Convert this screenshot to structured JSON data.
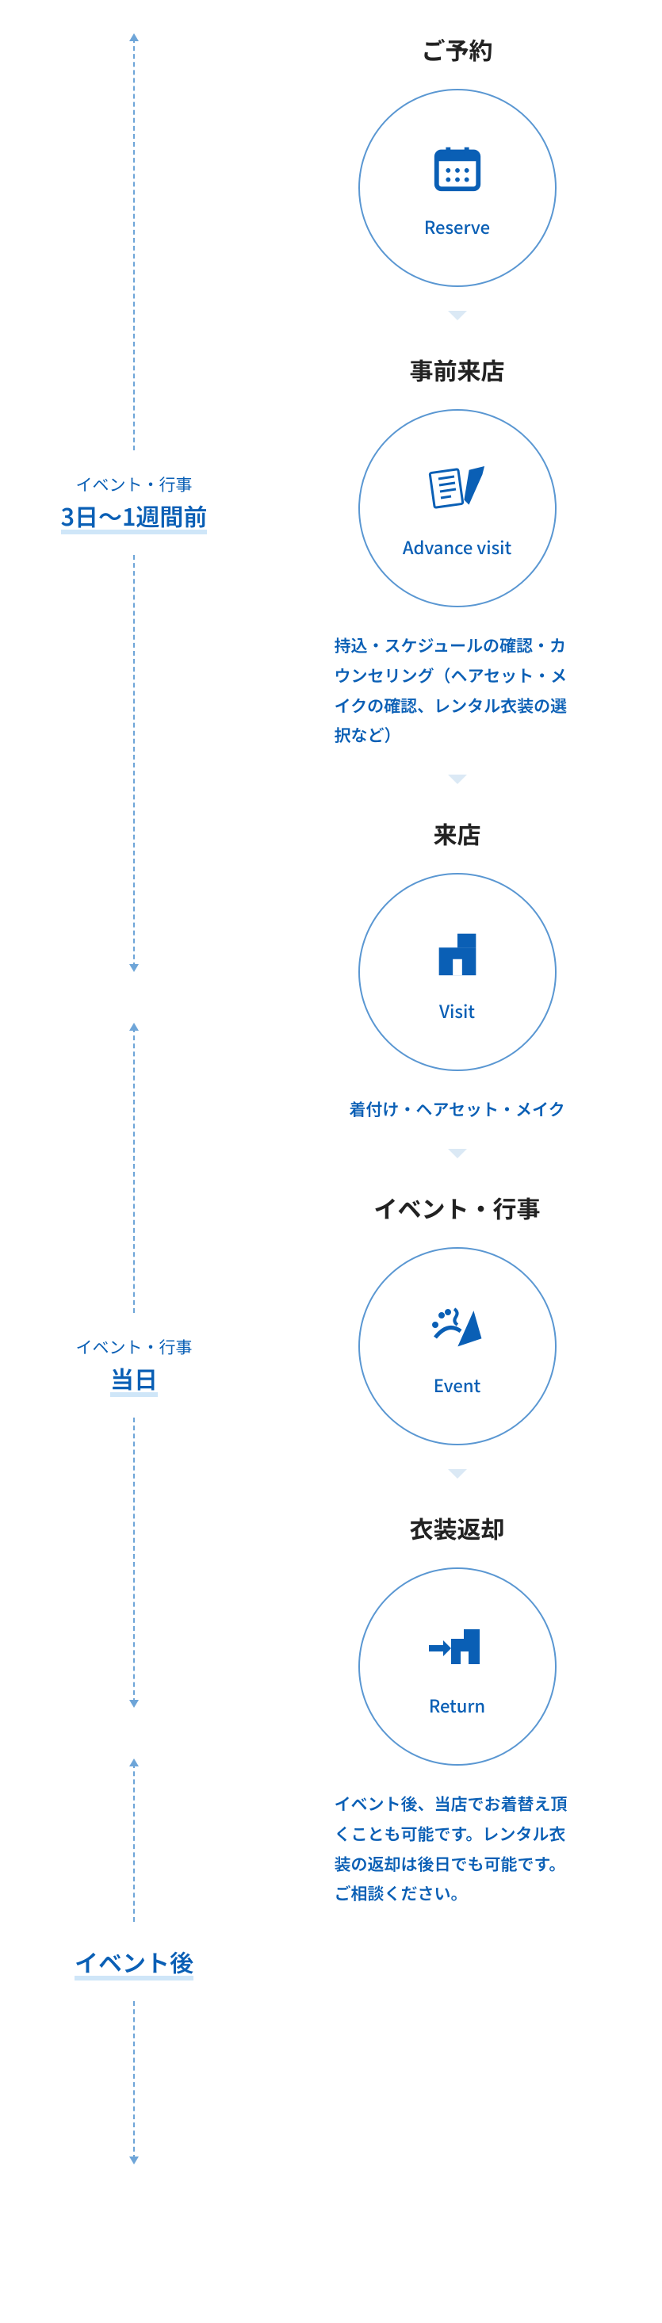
{
  "colors": {
    "primary": "#0a5fb5",
    "darkText": "#222222",
    "circleBorder": "#5a97d2",
    "arrow": "#6ea5d8",
    "chevron": "#dbe9f5",
    "underline": "#cfe6f8",
    "bg": "#ffffff"
  },
  "phases": [
    {
      "small": "イベント・行事",
      "large": "3日〜1週間前",
      "arrowUpHeight": 520,
      "arrowDownHeight": 520
    },
    {
      "small": "イベント・行事",
      "large": "当日",
      "arrowUpHeight": 360,
      "arrowDownHeight": 360
    },
    {
      "small": "",
      "large": "イベント後",
      "arrowUpHeight": 200,
      "arrowDownHeight": 200
    }
  ],
  "steps": [
    {
      "title": "ご予約",
      "labelEn": "Reserve",
      "icon": "calendar",
      "desc": ""
    },
    {
      "title": "事前来店",
      "labelEn": "Advance visit",
      "icon": "clipboard",
      "desc": "持込・スケジュールの確認・カウンセリング（ヘアセット・メイクの確認、レンタル衣装の選択など）"
    },
    {
      "title": "来店",
      "labelEn": "Visit",
      "icon": "building",
      "desc": "着付け・ヘアセット・メイク"
    },
    {
      "title": "イベント・行事",
      "labelEn": "Event",
      "icon": "party",
      "desc": ""
    },
    {
      "title": "衣装返却",
      "labelEn": "Return",
      "icon": "return",
      "desc": "イベント後、当店でお着替え頂くことも可能です。レンタル衣装の返却は後日でも可能です。ご相談ください。"
    }
  ]
}
